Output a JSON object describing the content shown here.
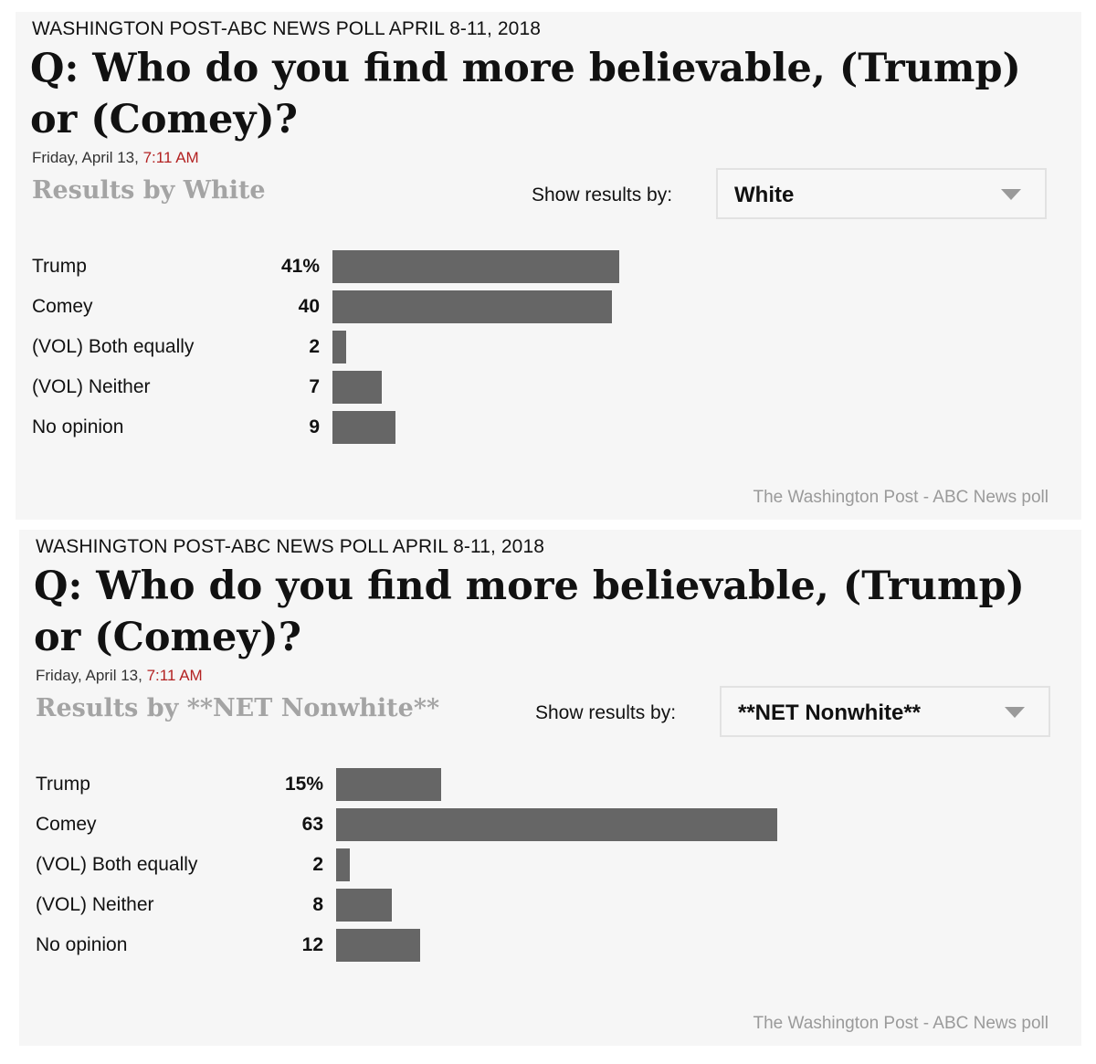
{
  "chart_data": [
    {
      "type": "bar",
      "orientation": "horizontal",
      "kicker": "WASHINGTON POST-ABC NEWS POLL APRIL 8-11, 2018",
      "title": "Q: Who do you find more believable, (Trump) or (Comey)?",
      "date": "Friday, April 13,",
      "time": "7:11 AM",
      "results_heading": "Results by White",
      "show_results_label": "Show results by:",
      "selected_group": "White",
      "categories": [
        "Trump",
        "Comey",
        "(VOL) Both equally",
        "(VOL) Neither",
        "No opinion"
      ],
      "values": [
        41,
        40,
        2,
        7,
        9
      ],
      "value_labels": [
        "41%",
        "40",
        "2",
        "7",
        "9"
      ],
      "xlim": [
        0,
        100
      ],
      "source": "The Washington Post - ABC News poll"
    },
    {
      "type": "bar",
      "orientation": "horizontal",
      "kicker": "WASHINGTON POST-ABC NEWS POLL APRIL 8-11, 2018",
      "title": "Q: Who do you find more believable, (Trump) or (Comey)?",
      "date": "Friday, April 13,",
      "time": "7:11 AM",
      "results_heading": "Results by **NET Nonwhite**",
      "show_results_label": "Show results by:",
      "selected_group": "**NET Nonwhite**",
      "categories": [
        "Trump",
        "Comey",
        "(VOL) Both equally",
        "(VOL) Neither",
        "No opinion"
      ],
      "values": [
        15,
        63,
        2,
        8,
        12
      ],
      "value_labels": [
        "15%",
        "63",
        "2",
        "8",
        "12"
      ],
      "xlim": [
        0,
        100
      ],
      "source": "The Washington Post - ABC News poll"
    }
  ],
  "colors": {
    "bar": "#666666",
    "time": "#b32222",
    "heading": "#a4a4a4"
  }
}
